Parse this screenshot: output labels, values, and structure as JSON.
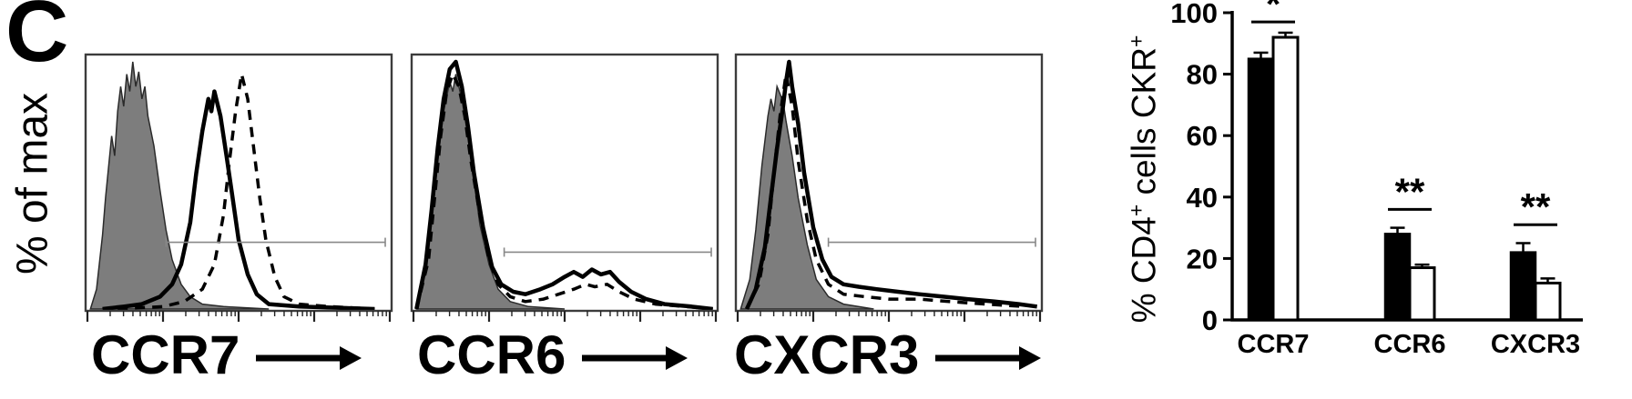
{
  "panel_label": "C",
  "chart_data": [
    {
      "type": "area",
      "subtype": "flow-cytometry-histogram",
      "xlabel": "CCR7",
      "ylabel": "% of max",
      "xscale": "log",
      "ylim": [
        0,
        1
      ],
      "grid": false,
      "gate": {
        "x1": 0.26,
        "x2": 0.985,
        "y": 0.27
      },
      "series": [
        {
          "name": "isotype-control",
          "style": "filled",
          "color": "#7d7d7d",
          "points": [
            [
              0.01,
              0
            ],
            [
              0.03,
              0.08
            ],
            [
              0.05,
              0.3
            ],
            [
              0.06,
              0.45
            ],
            [
              0.08,
              0.7
            ],
            [
              0.09,
              0.62
            ],
            [
              0.1,
              0.8
            ],
            [
              0.11,
              0.9
            ],
            [
              0.12,
              0.82
            ],
            [
              0.13,
              0.95
            ],
            [
              0.14,
              0.88
            ],
            [
              0.15,
              1
            ],
            [
              0.16,
              0.9
            ],
            [
              0.17,
              0.96
            ],
            [
              0.18,
              0.85
            ],
            [
              0.19,
              0.9
            ],
            [
              0.2,
              0.78
            ],
            [
              0.22,
              0.66
            ],
            [
              0.24,
              0.48
            ],
            [
              0.26,
              0.32
            ],
            [
              0.28,
              0.2
            ],
            [
              0.31,
              0.1
            ],
            [
              0.34,
              0.05
            ],
            [
              0.38,
              0.02
            ],
            [
              0.45,
              0.01
            ],
            [
              0.6,
              0
            ]
          ]
        },
        {
          "name": "sample-solid",
          "style": "solid",
          "color": "#000000",
          "points": [
            [
              0.05,
              0
            ],
            [
              0.12,
              0.01
            ],
            [
              0.18,
              0.02
            ],
            [
              0.24,
              0.05
            ],
            [
              0.28,
              0.1
            ],
            [
              0.31,
              0.18
            ],
            [
              0.34,
              0.35
            ],
            [
              0.36,
              0.55
            ],
            [
              0.38,
              0.72
            ],
            [
              0.4,
              0.85
            ],
            [
              0.41,
              0.8
            ],
            [
              0.42,
              0.88
            ],
            [
              0.44,
              0.78
            ],
            [
              0.46,
              0.62
            ],
            [
              0.48,
              0.45
            ],
            [
              0.5,
              0.28
            ],
            [
              0.53,
              0.14
            ],
            [
              0.56,
              0.06
            ],
            [
              0.6,
              0.02
            ],
            [
              0.7,
              0.01
            ],
            [
              0.95,
              0
            ]
          ]
        },
        {
          "name": "sample-dashed",
          "style": "dashed",
          "color": "#000000",
          "points": [
            [
              0.1,
              0
            ],
            [
              0.25,
              0.01
            ],
            [
              0.32,
              0.03
            ],
            [
              0.38,
              0.08
            ],
            [
              0.42,
              0.18
            ],
            [
              0.45,
              0.38
            ],
            [
              0.47,
              0.6
            ],
            [
              0.49,
              0.8
            ],
            [
              0.51,
              0.95
            ],
            [
              0.53,
              0.85
            ],
            [
              0.55,
              0.65
            ],
            [
              0.57,
              0.45
            ],
            [
              0.59,
              0.28
            ],
            [
              0.62,
              0.13
            ],
            [
              0.65,
              0.05
            ],
            [
              0.7,
              0.02
            ],
            [
              0.8,
              0.01
            ],
            [
              0.95,
              0
            ]
          ]
        }
      ]
    },
    {
      "type": "area",
      "subtype": "flow-cytometry-histogram",
      "xlabel": "CCR6",
      "ylabel": "% of max",
      "xscale": "log",
      "ylim": [
        0,
        1
      ],
      "grid": false,
      "gate": {
        "x1": 0.3,
        "x2": 0.985,
        "y": 0.23
      },
      "series": [
        {
          "name": "isotype-control",
          "style": "filled",
          "color": "#7d7d7d",
          "points": [
            [
              0.01,
              0
            ],
            [
              0.04,
              0.15
            ],
            [
              0.06,
              0.35
            ],
            [
              0.08,
              0.6
            ],
            [
              0.1,
              0.8
            ],
            [
              0.12,
              0.92
            ],
            [
              0.13,
              0.88
            ],
            [
              0.14,
              0.95
            ],
            [
              0.16,
              0.85
            ],
            [
              0.18,
              0.7
            ],
            [
              0.2,
              0.52
            ],
            [
              0.22,
              0.34
            ],
            [
              0.25,
              0.18
            ],
            [
              0.28,
              0.08
            ],
            [
              0.32,
              0.03
            ],
            [
              0.38,
              0.01
            ],
            [
              0.5,
              0
            ]
          ]
        },
        {
          "name": "sample-solid",
          "style": "solid",
          "color": "#000000",
          "points": [
            [
              0.01,
              0
            ],
            [
              0.04,
              0.18
            ],
            [
              0.06,
              0.4
            ],
            [
              0.08,
              0.65
            ],
            [
              0.1,
              0.85
            ],
            [
              0.12,
              0.97
            ],
            [
              0.14,
              1
            ],
            [
              0.16,
              0.9
            ],
            [
              0.18,
              0.74
            ],
            [
              0.2,
              0.55
            ],
            [
              0.23,
              0.33
            ],
            [
              0.26,
              0.17
            ],
            [
              0.29,
              0.1
            ],
            [
              0.33,
              0.07
            ],
            [
              0.37,
              0.06
            ],
            [
              0.42,
              0.08
            ],
            [
              0.46,
              0.1
            ],
            [
              0.5,
              0.13
            ],
            [
              0.53,
              0.15
            ],
            [
              0.56,
              0.13
            ],
            [
              0.59,
              0.16
            ],
            [
              0.62,
              0.14
            ],
            [
              0.65,
              0.15
            ],
            [
              0.68,
              0.11
            ],
            [
              0.72,
              0.07
            ],
            [
              0.77,
              0.04
            ],
            [
              0.83,
              0.02
            ],
            [
              0.92,
              0.01
            ],
            [
              0.99,
              0
            ]
          ]
        },
        {
          "name": "sample-dashed",
          "style": "dashed",
          "color": "#000000",
          "points": [
            [
              0.01,
              0
            ],
            [
              0.05,
              0.2
            ],
            [
              0.07,
              0.45
            ],
            [
              0.09,
              0.7
            ],
            [
              0.11,
              0.88
            ],
            [
              0.13,
              0.95
            ],
            [
              0.15,
              0.9
            ],
            [
              0.17,
              0.78
            ],
            [
              0.19,
              0.6
            ],
            [
              0.22,
              0.38
            ],
            [
              0.25,
              0.2
            ],
            [
              0.28,
              0.1
            ],
            [
              0.32,
              0.05
            ],
            [
              0.37,
              0.03
            ],
            [
              0.43,
              0.04
            ],
            [
              0.48,
              0.06
            ],
            [
              0.53,
              0.08
            ],
            [
              0.57,
              0.1
            ],
            [
              0.6,
              0.09
            ],
            [
              0.64,
              0.1
            ],
            [
              0.68,
              0.07
            ],
            [
              0.73,
              0.04
            ],
            [
              0.8,
              0.02
            ],
            [
              0.9,
              0.01
            ],
            [
              0.99,
              0
            ]
          ]
        }
      ]
    },
    {
      "type": "area",
      "subtype": "flow-cytometry-histogram",
      "xlabel": "CXCR3",
      "ylabel": "% of max",
      "xscale": "log",
      "ylim": [
        0,
        1
      ],
      "grid": false,
      "gate": {
        "x1": 0.3,
        "x2": 0.985,
        "y": 0.27
      },
      "series": [
        {
          "name": "isotype-control",
          "style": "filled",
          "color": "#7d7d7d",
          "points": [
            [
              0.01,
              0
            ],
            [
              0.04,
              0.12
            ],
            [
              0.06,
              0.32
            ],
            [
              0.08,
              0.58
            ],
            [
              0.1,
              0.78
            ],
            [
              0.11,
              0.85
            ],
            [
              0.12,
              0.8
            ],
            [
              0.13,
              0.9
            ],
            [
              0.15,
              0.84
            ],
            [
              0.16,
              0.76
            ],
            [
              0.18,
              0.62
            ],
            [
              0.2,
              0.45
            ],
            [
              0.23,
              0.26
            ],
            [
              0.26,
              0.12
            ],
            [
              0.3,
              0.05
            ],
            [
              0.35,
              0.02
            ],
            [
              0.45,
              0
            ]
          ]
        },
        {
          "name": "sample-solid",
          "style": "solid",
          "color": "#000000",
          "points": [
            [
              0.03,
              0
            ],
            [
              0.06,
              0.08
            ],
            [
              0.09,
              0.25
            ],
            [
              0.11,
              0.45
            ],
            [
              0.13,
              0.65
            ],
            [
              0.15,
              0.82
            ],
            [
              0.16,
              0.92
            ],
            [
              0.17,
              1
            ],
            [
              0.18,
              0.9
            ],
            [
              0.2,
              0.75
            ],
            [
              0.22,
              0.55
            ],
            [
              0.25,
              0.33
            ],
            [
              0.28,
              0.2
            ],
            [
              0.31,
              0.13
            ],
            [
              0.35,
              0.1
            ],
            [
              0.4,
              0.09
            ],
            [
              0.46,
              0.08
            ],
            [
              0.53,
              0.07
            ],
            [
              0.6,
              0.06
            ],
            [
              0.68,
              0.05
            ],
            [
              0.76,
              0.04
            ],
            [
              0.85,
              0.03
            ],
            [
              0.93,
              0.02
            ],
            [
              0.99,
              0.01
            ]
          ]
        },
        {
          "name": "sample-dashed",
          "style": "dashed",
          "color": "#000000",
          "points": [
            [
              0.03,
              0
            ],
            [
              0.07,
              0.1
            ],
            [
              0.1,
              0.3
            ],
            [
              0.12,
              0.55
            ],
            [
              0.14,
              0.78
            ],
            [
              0.16,
              0.95
            ],
            [
              0.18,
              0.82
            ],
            [
              0.2,
              0.6
            ],
            [
              0.23,
              0.36
            ],
            [
              0.26,
              0.2
            ],
            [
              0.3,
              0.1
            ],
            [
              0.35,
              0.06
            ],
            [
              0.42,
              0.05
            ],
            [
              0.5,
              0.04
            ],
            [
              0.6,
              0.04
            ],
            [
              0.7,
              0.03
            ],
            [
              0.82,
              0.02
            ],
            [
              0.95,
              0.01
            ]
          ]
        }
      ]
    },
    {
      "type": "bar",
      "title": "",
      "xlabel": "",
      "ylabel": "% CD4+ cells CKR+",
      "ylabel_segments": [
        {
          "text": "% CD4"
        },
        {
          "text": "+",
          "sup": true
        },
        {
          "text": " cells CKR"
        },
        {
          "text": "+",
          "sup": true
        }
      ],
      "ylim": [
        0,
        100
      ],
      "yticks": [
        0,
        20,
        40,
        60,
        80,
        100
      ],
      "categories": [
        "CCR7",
        "CCR6",
        "CXCR3"
      ],
      "series": [
        {
          "name": "black-bars",
          "fill": "#000000",
          "values": [
            85,
            28,
            22
          ],
          "errors": [
            2,
            2,
            3
          ]
        },
        {
          "name": "white-bars",
          "fill": "#ffffff",
          "values": [
            92,
            17,
            12
          ],
          "errors": [
            1.5,
            1,
            1.5
          ]
        }
      ],
      "significance": [
        "*",
        "**",
        "**"
      ],
      "significance_y": [
        97,
        36,
        31
      ],
      "legend_position": "none",
      "grid": false
    }
  ]
}
